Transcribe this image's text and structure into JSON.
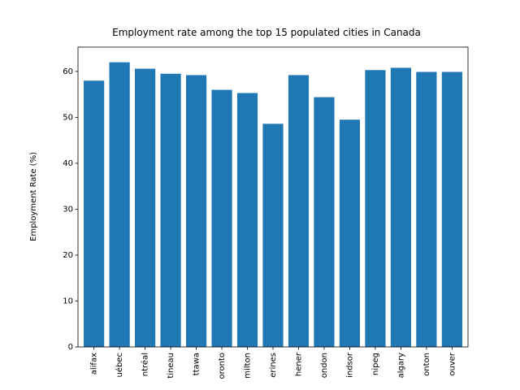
{
  "chart_data": {
    "type": "bar",
    "title": "Employment rate among the top 15 populated cities in Canada",
    "y_label": "Employment Rate (%)",
    "categories": [
      "alifax",
      "uébec",
      "ntréal",
      "tineau",
      "ttawa",
      "oronto",
      "milton",
      "erines",
      "hener",
      "ondon",
      "indsor",
      "nipeg",
      "algary",
      "onton",
      "ouver"
    ],
    "values": [
      58.0,
      62.0,
      60.6,
      59.5,
      59.2,
      56.0,
      55.3,
      48.6,
      59.2,
      54.4,
      49.5,
      60.3,
      60.8,
      59.9,
      59.9
    ],
    "color": "#1f77b4",
    "ylim": [
      0,
      65.3
    ],
    "yticks": [
      0,
      10,
      20,
      30,
      40,
      50,
      60
    ]
  }
}
